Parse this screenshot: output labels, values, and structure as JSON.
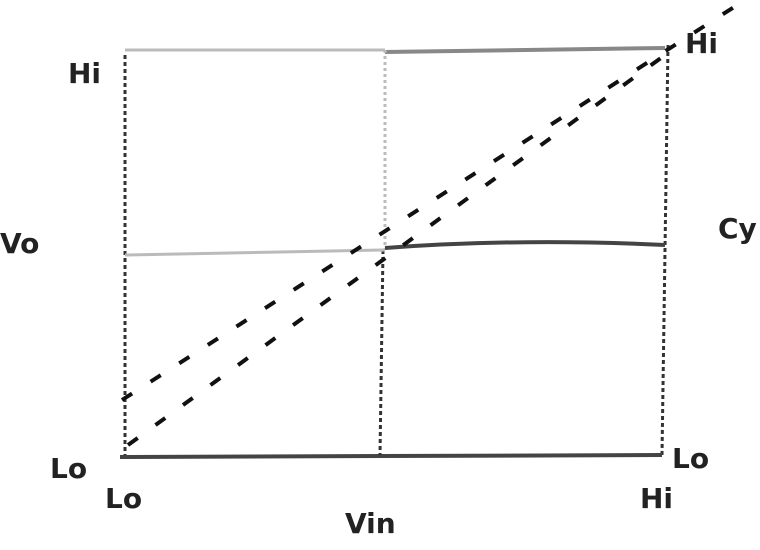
{
  "labels": {
    "y_high": "Hi",
    "y_axis": "Vo",
    "y_low": "Lo",
    "x_low": "Lo",
    "x_axis": "Vin",
    "x_high": "Hi",
    "right_high": "Hi",
    "right_mid": "Cy",
    "right_low": "Lo"
  }
}
